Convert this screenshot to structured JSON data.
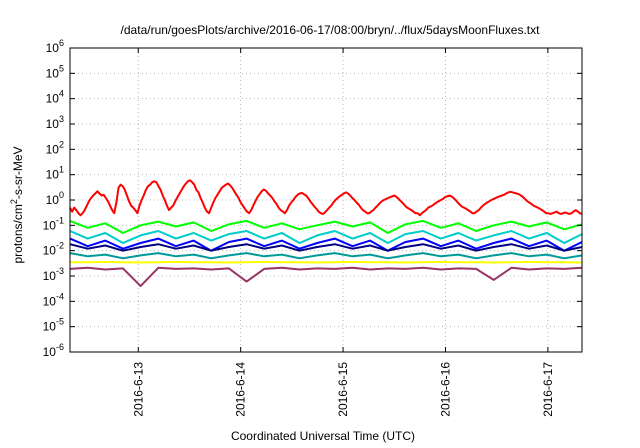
{
  "chart_data": {
    "type": "line",
    "title": "/data/run/goesPlots/archive/2016-06-17/08:00/bryn/../flux/5daysMoonFluxes.txt",
    "xlabel": "Coordinated Universal Time (UTC)",
    "ylabel": {
      "main": "protons/cm",
      "sup": "2",
      "rest": "-s-sr-MeV"
    },
    "y_scale": "log",
    "ylim": [
      1e-06,
      1000000.0
    ],
    "y_ticks": [
      {
        "value": 1e-06,
        "base": "10",
        "exp": "-6"
      },
      {
        "value": 1e-05,
        "base": "10",
        "exp": "-5"
      },
      {
        "value": 0.0001,
        "base": "10",
        "exp": "-4"
      },
      {
        "value": 0.001,
        "base": "10",
        "exp": "-3"
      },
      {
        "value": 0.01,
        "base": "10",
        "exp": "-2"
      },
      {
        "value": 0.1,
        "base": "10",
        "exp": "-1"
      },
      {
        "value": 1,
        "base": "10",
        "exp": "0"
      },
      {
        "value": 10,
        "base": "10",
        "exp": "1"
      },
      {
        "value": 100,
        "base": "10",
        "exp": "2"
      },
      {
        "value": 1000,
        "base": "10",
        "exp": "3"
      },
      {
        "value": 10000,
        "base": "10",
        "exp": "4"
      },
      {
        "value": 100000,
        "base": "10",
        "exp": "5"
      },
      {
        "value": 1000000,
        "base": "10",
        "exp": "6"
      }
    ],
    "xlim": [
      "2016-06-12 08:00",
      "2016-06-17 08:00"
    ],
    "x_ticks": [
      {
        "value": "2016-06-13 00:00",
        "label": "2016-6-13"
      },
      {
        "value": "2016-06-14 00:00",
        "label": "2016-6-14"
      },
      {
        "value": "2016-06-15 00:00",
        "label": "2016-6-15"
      },
      {
        "value": "2016-06-16 00:00",
        "label": "2016-6-16"
      },
      {
        "value": "2016-06-17 00:00",
        "label": "2016-6-17"
      }
    ],
    "grid": true,
    "x_step_hours": 2,
    "x_start": "2016-06-12 08:00",
    "series": [
      {
        "color": "#ff0000",
        "values": [
          0.5,
          0.35,
          0.5,
          0.4,
          0.3,
          0.25,
          0.3,
          0.4,
          0.6,
          0.9,
          1.2,
          1.5,
          1.8,
          2.2,
          1.8,
          1.5,
          1.6,
          1.2,
          0.9,
          0.6,
          0.4,
          0.3,
          0.8,
          3,
          4,
          3.5,
          2.5,
          1.5,
          0.9,
          0.6,
          0.5,
          0.4,
          0.3,
          0.6,
          1,
          1.5,
          2.5,
          3.5,
          4,
          5,
          5.5,
          5,
          3.5,
          2.5,
          1.5,
          1,
          0.6,
          0.4,
          0.5,
          0.6,
          0.9,
          1.3,
          1.8,
          2.5,
          3.5,
          4.5,
          5.5,
          6,
          5,
          4,
          2.5,
          2,
          1.2,
          0.8,
          0.5,
          0.35,
          0.3,
          0.5,
          0.8,
          1.2,
          1.6,
          2.2,
          3,
          3.5,
          4,
          4.5,
          3.8,
          3,
          2.2,
          1.6,
          1.2,
          0.8,
          0.6,
          0.45,
          0.35,
          0.3,
          0.4,
          0.6,
          0.9,
          1.3,
          1.7,
          2.2,
          2.6,
          2.3,
          1.8,
          1.5,
          1.2,
          0.9,
          0.7,
          0.5,
          0.4,
          0.35,
          0.3,
          0.4,
          0.6,
          0.8,
          1,
          1.3,
          1.6,
          1.8,
          1.9,
          1.7,
          1.5,
          1.2,
          0.9,
          0.7,
          0.55,
          0.45,
          0.35,
          0.3,
          0.28,
          0.32,
          0.4,
          0.5,
          0.6,
          0.8,
          1,
          1.2,
          1.4,
          1.6,
          1.8,
          2,
          1.8,
          1.5,
          1.2,
          1,
          0.8,
          0.65,
          0.5,
          0.4,
          0.35,
          0.3,
          0.3,
          0.35,
          0.4,
          0.5,
          0.6,
          0.75,
          0.9,
          1,
          1.1,
          1.2,
          1.3,
          1.4,
          1.5,
          1.3,
          1.1,
          0.9,
          0.75,
          0.6,
          0.5,
          0.45,
          0.4,
          0.35,
          0.3,
          0.3,
          0.25,
          0.3,
          0.35,
          0.4,
          0.5,
          0.55,
          0.6,
          0.7,
          0.8,
          0.9,
          1,
          1.1,
          1.3,
          1.4,
          1.5,
          1.4,
          1.2,
          1,
          0.8,
          0.65,
          0.55,
          0.5,
          0.45,
          0.4,
          0.35,
          0.3,
          0.3,
          0.35,
          0.4,
          0.5,
          0.6,
          0.7,
          0.8,
          0.9,
          1,
          1.1,
          1.2,
          1.3,
          1.4,
          1.5,
          1.6,
          1.8,
          2,
          2.1,
          2,
          1.9,
          1.8,
          1.7,
          1.5,
          1.3,
          1.1,
          0.9,
          0.8,
          0.7,
          0.6,
          0.55,
          0.5,
          0.45,
          0.4,
          0.35,
          0.3,
          0.3,
          0.28,
          0.3,
          0.32,
          0.35,
          0.3,
          0.28,
          0.3,
          0.32,
          0.3,
          0.28,
          0.3,
          0.35,
          0.4,
          0.35,
          0.3,
          0.28
        ]
      },
      {
        "color": "#00ff00",
        "values": [
          0.15,
          0.08,
          0.12,
          0.05,
          0.1,
          0.14,
          0.09,
          0.13,
          0.06,
          0.11,
          0.15,
          0.08,
          0.12,
          0.07,
          0.1,
          0.14,
          0.09,
          0.13,
          0.05,
          0.11,
          0.15,
          0.08,
          0.12,
          0.06,
          0.1,
          0.14,
          0.09,
          0.13,
          0.07,
          0.11
        ]
      },
      {
        "color": "#00cccc",
        "values": [
          0.06,
          0.03,
          0.05,
          0.02,
          0.04,
          0.06,
          0.03,
          0.05,
          0.025,
          0.045,
          0.06,
          0.03,
          0.05,
          0.02,
          0.04,
          0.06,
          0.03,
          0.05,
          0.02,
          0.045,
          0.06,
          0.03,
          0.05,
          0.025,
          0.04,
          0.06,
          0.03,
          0.05,
          0.02,
          0.045
        ]
      },
      {
        "color": "#0000ff",
        "values": [
          0.03,
          0.015,
          0.025,
          0.012,
          0.02,
          0.03,
          0.015,
          0.025,
          0.01,
          0.022,
          0.03,
          0.015,
          0.025,
          0.012,
          0.02,
          0.03,
          0.015,
          0.025,
          0.01,
          0.022,
          0.03,
          0.015,
          0.025,
          0.012,
          0.02,
          0.03,
          0.015,
          0.025,
          0.01,
          0.022
        ]
      },
      {
        "color": "#000080",
        "values": [
          0.018,
          0.012,
          0.016,
          0.01,
          0.014,
          0.018,
          0.012,
          0.016,
          0.01,
          0.014,
          0.018,
          0.012,
          0.016,
          0.01,
          0.014,
          0.018,
          0.012,
          0.016,
          0.01,
          0.014,
          0.018,
          0.012,
          0.016,
          0.01,
          0.014,
          0.018,
          0.012,
          0.016,
          0.01,
          0.014
        ]
      },
      {
        "color": "#009999",
        "values": [
          0.008,
          0.006,
          0.007,
          0.005,
          0.0065,
          0.008,
          0.006,
          0.007,
          0.005,
          0.0065,
          0.008,
          0.006,
          0.007,
          0.005,
          0.0065,
          0.008,
          0.006,
          0.007,
          0.005,
          0.0065,
          0.008,
          0.006,
          0.007,
          0.005,
          0.0065,
          0.008,
          0.006,
          0.007,
          0.005,
          0.0065
        ]
      },
      {
        "color": "#ffff00",
        "values": [
          0.0035,
          0.0035,
          0.0036,
          0.0035,
          0.0034,
          0.0035,
          0.0036,
          0.0035,
          0.0035,
          0.0034,
          0.0035,
          0.0036,
          0.0035,
          0.0035,
          0.0034,
          0.0035,
          0.0036,
          0.0035,
          0.0035,
          0.0034,
          0.0035,
          0.0036,
          0.0035,
          0.0035,
          0.0034,
          0.0035,
          0.0036,
          0.0035,
          0.0035,
          0.0034
        ]
      },
      {
        "color": "#993366",
        "values": [
          0.0019,
          0.0021,
          0.0018,
          0.002,
          0.0004,
          0.0021,
          0.0019,
          0.002,
          0.0018,
          0.002,
          0.0006,
          0.0019,
          0.0021,
          0.0018,
          0.002,
          0.0019,
          0.0021,
          0.0018,
          0.002,
          0.0019,
          0.0021,
          0.0018,
          0.002,
          0.0019,
          0.0007,
          0.0021,
          0.0018,
          0.002,
          0.0019,
          0.0021
        ]
      }
    ]
  }
}
